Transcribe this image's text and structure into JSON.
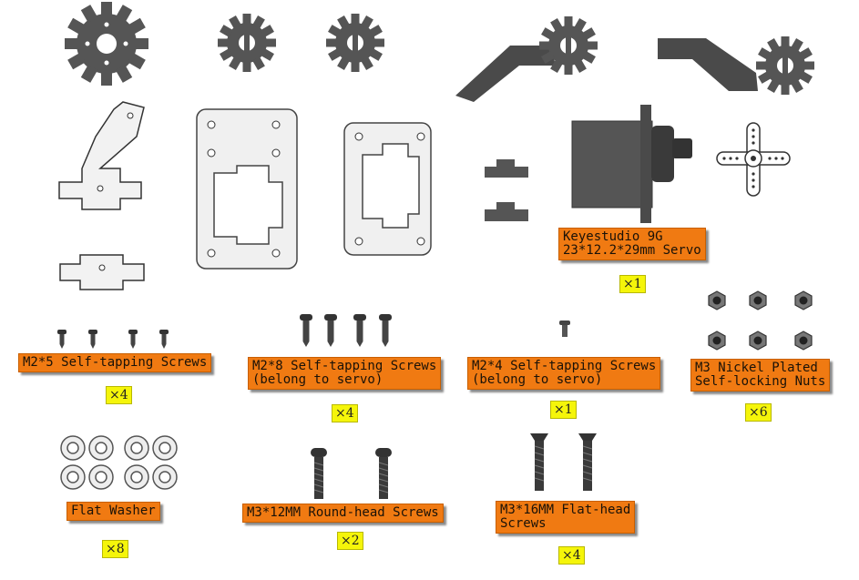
{
  "labels": {
    "servo": "Keyestudio 9G\n23*12.2*29mm Servo",
    "m2x5": "M2*5 Self-tapping Screws",
    "m2x8": "M2*8 Self-tapping Screws\n(belong to servo)",
    "m2x4": "M2*4 Self-tapping Screws\n(belong to servo)",
    "m3nuts": "M3 Nickel Plated\nSelf-locking Nuts",
    "washer": "Flat Washer",
    "m3x12": "M3*12MM Round-head Screws",
    "m3x16": "M3*16MM Flat-head\nScrews"
  },
  "quantities": {
    "servo": "×1",
    "m2x5": "×4",
    "m2x8": "×4",
    "m2x4": "×1",
    "m3nuts": "×6",
    "washer": "×8",
    "m3x12": "×2",
    "m3x16": "×4"
  },
  "colors": {
    "label_bg": "#f07a12",
    "qty_bg": "#f5f50a",
    "part_dark": "#505050",
    "part_light": "#f2f2f2"
  }
}
